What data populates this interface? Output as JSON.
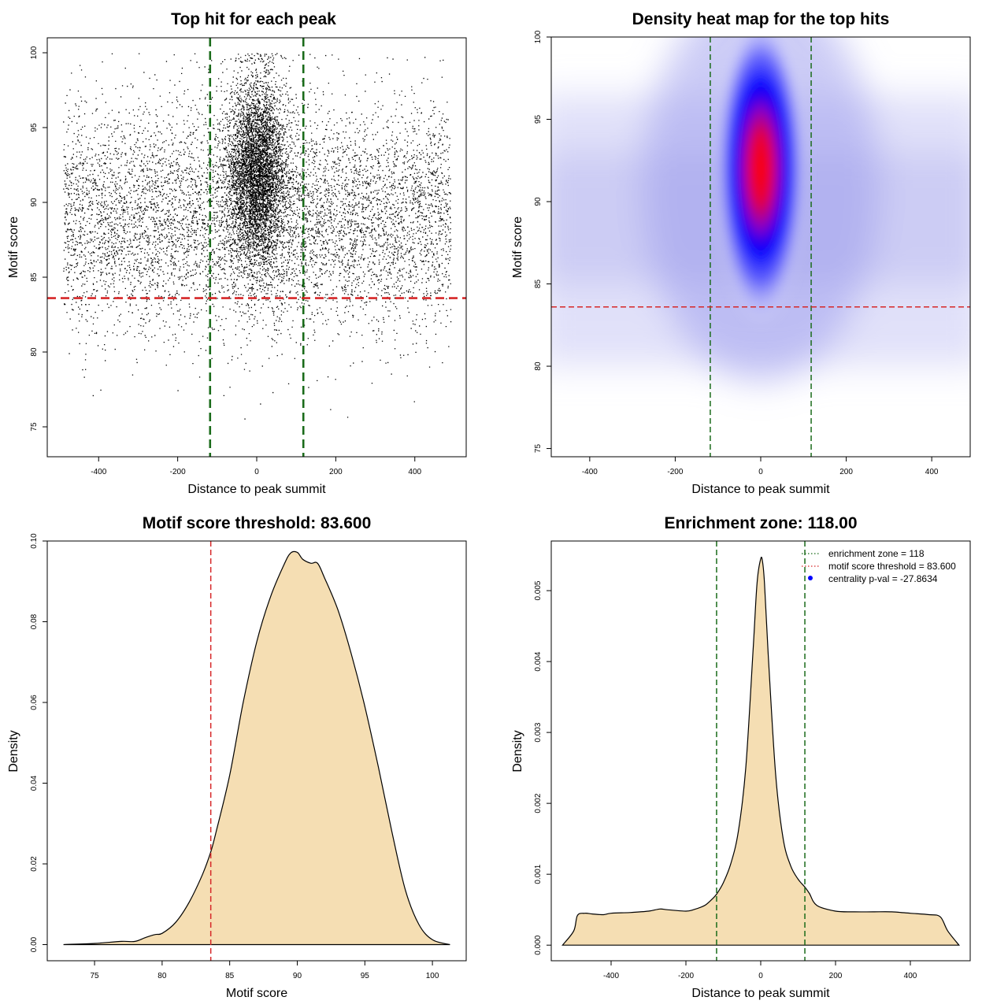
{
  "figure": {
    "colors": {
      "enrichment_line": "#1a6b1a",
      "threshold_line": "#d62728",
      "density_fill": "#f5deb3",
      "scatter_point": "#000000",
      "heat_low": "#ffffff",
      "heat_mid": "#0000ff",
      "heat_high": "#ff0000",
      "legend_point": "#0000ff"
    }
  },
  "chart_data": [
    {
      "id": "scatter",
      "type": "scatter",
      "title": "Top hit for each peak",
      "xlabel": "Distance to peak summit",
      "ylabel": "Motif score",
      "xlim": [
        -530,
        530
      ],
      "ylim": [
        73,
        101
      ],
      "xticks": [
        "-400",
        "-200",
        "0",
        "200",
        "400"
      ],
      "xtick_values": [
        -400,
        -200,
        0,
        200,
        400
      ],
      "yticks": [
        "75",
        "80",
        "85",
        "90",
        "95",
        "100"
      ],
      "ytick_values": [
        75,
        80,
        85,
        90,
        95,
        100
      ],
      "vlines": [
        -118,
        118
      ],
      "hline": 83.6,
      "approx_points": 12000,
      "x_range": [
        -490,
        490
      ],
      "background_score_center": 89,
      "central_score_center": 92
    },
    {
      "id": "heatmap",
      "type": "heatmap",
      "title": "Density heat map for the top hits",
      "xlabel": "Distance to peak summit",
      "ylabel": "Motif score",
      "xlim": [
        -490,
        490
      ],
      "ylim": [
        74.5,
        100
      ],
      "xticks": [
        "-400",
        "-200",
        "0",
        "200",
        "400"
      ],
      "xtick_values": [
        -400,
        -200,
        0,
        200,
        400
      ],
      "yticks": [
        "75",
        "80",
        "85",
        "90",
        "95",
        "100"
      ],
      "ytick_values": [
        75,
        80,
        85,
        90,
        95,
        100
      ],
      "vlines": [
        -118,
        118
      ],
      "hline": 83.6,
      "peak_center": [
        0,
        92
      ]
    },
    {
      "id": "score-density",
      "type": "area",
      "title": "Motif score threshold: 83.600",
      "xlabel": "Motif score",
      "ylabel": "Density",
      "xlim": [
        71.5,
        102.5
      ],
      "ylim": [
        -0.004,
        0.1
      ],
      "xticks": [
        "75",
        "80",
        "85",
        "90",
        "95",
        "100"
      ],
      "xtick_values": [
        75,
        80,
        85,
        90,
        95,
        100
      ],
      "yticks": [
        "0.00",
        "0.02",
        "0.04",
        "0.06",
        "0.08",
        "0.10"
      ],
      "ytick_values": [
        0,
        0.02,
        0.04,
        0.06,
        0.08,
        0.1
      ],
      "vline": 83.6,
      "x": [
        72.7,
        75,
        77,
        78,
        78.8,
        79.5,
        80,
        81,
        82,
        83,
        83.6,
        84,
        85,
        86,
        87,
        88,
        89,
        89.5,
        90,
        90.4,
        91,
        91.5,
        92,
        93,
        94,
        95,
        96,
        97,
        98,
        99,
        100,
        101.3
      ],
      "y": [
        0,
        0.0003,
        0.0008,
        0.0008,
        0.0018,
        0.0025,
        0.0028,
        0.0055,
        0.0105,
        0.0175,
        0.023,
        0.028,
        0.042,
        0.06,
        0.075,
        0.086,
        0.094,
        0.097,
        0.0972,
        0.0955,
        0.0945,
        0.0945,
        0.091,
        0.083,
        0.072,
        0.059,
        0.044,
        0.028,
        0.0135,
        0.005,
        0.0012,
        0
      ]
    },
    {
      "id": "distance-density",
      "type": "area",
      "title": "Enrichment zone: 118.00",
      "xlabel": "Distance to peak summit",
      "ylabel": "Density",
      "xlim": [
        -560,
        560
      ],
      "ylim": [
        -0.00022,
        0.0057
      ],
      "xticks": [
        "-400",
        "-200",
        "0",
        "200",
        "400"
      ],
      "xtick_values": [
        -400,
        -200,
        0,
        200,
        400
      ],
      "yticks": [
        "0.000",
        "0.001",
        "0.002",
        "0.003",
        "0.004",
        "0.005"
      ],
      "ytick_values": [
        0,
        0.001,
        0.002,
        0.003,
        0.004,
        0.005
      ],
      "vlines": [
        -118,
        118
      ],
      "x": [
        -530,
        -500,
        -490,
        -470,
        -450,
        -420,
        -400,
        -350,
        -300,
        -270,
        -250,
        -200,
        -180,
        -150,
        -130,
        -118,
        -100,
        -80,
        -60,
        -40,
        -20,
        -10,
        0,
        5,
        10,
        20,
        40,
        60,
        80,
        100,
        118,
        130,
        150,
        200,
        250,
        300,
        350,
        400,
        450,
        480,
        500,
        530
      ],
      "y": [
        0,
        0.0002,
        0.00042,
        0.00045,
        0.00044,
        0.00043,
        0.00045,
        0.00046,
        0.00048,
        0.00051,
        0.0005,
        0.00048,
        0.0005,
        0.00056,
        0.00065,
        0.00072,
        0.00088,
        0.00115,
        0.0016,
        0.0025,
        0.0042,
        0.0051,
        0.00545,
        0.0054,
        0.0051,
        0.0041,
        0.0024,
        0.0015,
        0.00112,
        0.00093,
        0.00082,
        0.00073,
        0.00056,
        0.00048,
        0.00047,
        0.00047,
        0.00047,
        0.00045,
        0.00043,
        0.0004,
        0.0002,
        0
      ],
      "legend": [
        {
          "label": "enrichment zone = 118",
          "kind": "dotted-line",
          "color": "#1a6b1a"
        },
        {
          "label": "motif score threshold = 83.600",
          "kind": "dotted-line",
          "color": "#d62728"
        },
        {
          "label": "centrality p-val = -27.8634",
          "kind": "point",
          "color": "#0000ff"
        }
      ]
    }
  ]
}
